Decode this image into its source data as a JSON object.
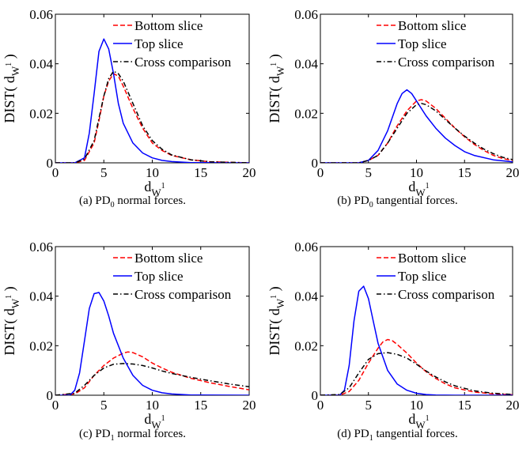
{
  "chart_data": [
    {
      "type": "line",
      "panel_id": "a",
      "caption_prefix": "(a) PD",
      "caption_sub": "0",
      "caption_suffix": " normal forces.",
      "xlabel": "d",
      "xlabel_sub": "W",
      "xlabel_sup": "1",
      "ylabel": "DIST( d",
      "ylabel_sub": "W",
      "ylabel_sup": "1",
      "ylabel_close": " )",
      "xlim": [
        0,
        20
      ],
      "ylim": [
        0,
        0.06
      ],
      "xticks": [
        "0",
        "5",
        "10",
        "15",
        "20"
      ],
      "yticks": [
        "0",
        "0.02",
        "0.04",
        "0.06"
      ],
      "grid": false,
      "legend_position": "top-right",
      "series": [
        {
          "name": "Bottom slice",
          "color": "#ff0000",
          "dash": "dashed",
          "x": [
            0,
            2,
            3,
            4,
            4.5,
            5,
            5.5,
            6,
            6.5,
            7,
            8,
            9,
            10,
            11,
            12,
            14,
            16,
            20
          ],
          "y": [
            0,
            0,
            0.001,
            0.008,
            0.017,
            0.027,
            0.033,
            0.036,
            0.035,
            0.031,
            0.022,
            0.014,
            0.008,
            0.005,
            0.003,
            0.0012,
            0.0004,
            0
          ]
        },
        {
          "name": "Top slice",
          "color": "#0000ff",
          "dash": "solid",
          "x": [
            0,
            2,
            3,
            3.5,
            4,
            4.5,
            5,
            5.5,
            6,
            6.5,
            7,
            8,
            9,
            10,
            11,
            12,
            14,
            20
          ],
          "y": [
            0,
            0,
            0.002,
            0.012,
            0.028,
            0.045,
            0.05,
            0.046,
            0.036,
            0.024,
            0.016,
            0.008,
            0.004,
            0.002,
            0.001,
            0.0005,
            0.0001,
            0
          ]
        },
        {
          "name": "Cross comparison",
          "color": "#000000",
          "dash": "dashdot",
          "x": [
            0,
            2,
            3,
            4,
            4.5,
            5,
            5.5,
            6,
            6.5,
            7,
            8,
            9,
            10,
            11,
            12,
            14,
            16,
            20
          ],
          "y": [
            0,
            0,
            0.0015,
            0.009,
            0.018,
            0.027,
            0.034,
            0.037,
            0.036,
            0.033,
            0.024,
            0.015,
            0.009,
            0.0055,
            0.0032,
            0.0012,
            0.0004,
            0
          ]
        }
      ]
    },
    {
      "type": "line",
      "panel_id": "b",
      "caption_prefix": "(b) PD",
      "caption_sub": "0",
      "caption_suffix": " tangential forces.",
      "xlabel": "d",
      "xlabel_sub": "W",
      "xlabel_sup": "1",
      "ylabel": "DIST( d",
      "ylabel_sub": "W",
      "ylabel_sup": "1",
      "ylabel_close": " )",
      "xlim": [
        0,
        20
      ],
      "ylim": [
        0,
        0.06
      ],
      "xticks": [
        "0",
        "5",
        "10",
        "15",
        "20"
      ],
      "yticks": [
        "0",
        "0.02",
        "0.04",
        "0.06"
      ],
      "grid": false,
      "legend_position": "top-right",
      "series": [
        {
          "name": "Bottom slice",
          "color": "#ff0000",
          "dash": "dashed",
          "x": [
            0,
            4,
            5,
            6,
            7,
            8,
            9,
            10,
            10.5,
            11,
            12,
            13,
            14,
            15,
            16,
            17,
            18,
            19,
            20
          ],
          "y": [
            0,
            0,
            0.001,
            0.003,
            0.008,
            0.015,
            0.021,
            0.025,
            0.0255,
            0.025,
            0.022,
            0.018,
            0.014,
            0.0105,
            0.0075,
            0.005,
            0.003,
            0.0017,
            0.001
          ]
        },
        {
          "name": "Top slice",
          "color": "#0000ff",
          "dash": "solid",
          "x": [
            0,
            4,
            5,
            6,
            7,
            8,
            8.5,
            9,
            9.5,
            10,
            11,
            12,
            13,
            14,
            15,
            16,
            18,
            20
          ],
          "y": [
            0,
            0,
            0.001,
            0.005,
            0.013,
            0.024,
            0.028,
            0.0295,
            0.028,
            0.025,
            0.019,
            0.014,
            0.01,
            0.007,
            0.0045,
            0.003,
            0.0012,
            0.0004
          ]
        },
        {
          "name": "Cross comparison",
          "color": "#000000",
          "dash": "dashdot",
          "x": [
            0,
            4,
            5,
            6,
            7,
            8,
            9,
            10,
            10.5,
            11,
            12,
            13,
            14,
            15,
            16,
            17,
            18,
            19,
            20
          ],
          "y": [
            0,
            0,
            0.001,
            0.003,
            0.008,
            0.014,
            0.02,
            0.0235,
            0.024,
            0.0235,
            0.021,
            0.0175,
            0.014,
            0.0108,
            0.008,
            0.0056,
            0.0037,
            0.0022,
            0.0013
          ]
        }
      ]
    },
    {
      "type": "line",
      "panel_id": "c",
      "caption_prefix": "(c) PD",
      "caption_sub": "1",
      "caption_suffix": " normal forces.",
      "xlabel": "d",
      "xlabel_sub": "W",
      "xlabel_sup": "1",
      "ylabel": "DIST( d",
      "ylabel_sub": "W",
      "ylabel_sup": "1",
      "ylabel_close": " )",
      "xlim": [
        0,
        20
      ],
      "ylim": [
        0,
        0.06
      ],
      "xticks": [
        "0",
        "5",
        "10",
        "15",
        "20"
      ],
      "yticks": [
        "0",
        "0.02",
        "0.04",
        "0.06"
      ],
      "grid": false,
      "legend_position": "top-right",
      "series": [
        {
          "name": "Bottom slice",
          "color": "#ff0000",
          "dash": "dashed",
          "x": [
            0,
            2,
            3,
            4,
            5,
            6,
            7,
            7.5,
            8,
            9,
            10,
            11,
            12,
            14,
            16,
            18,
            20
          ],
          "y": [
            0,
            0.0005,
            0.003,
            0.008,
            0.012,
            0.015,
            0.017,
            0.0175,
            0.0172,
            0.0155,
            0.013,
            0.011,
            0.0093,
            0.0068,
            0.005,
            0.0035,
            0.0022
          ]
        },
        {
          "name": "Top slice",
          "color": "#0000ff",
          "dash": "solid",
          "x": [
            0,
            1.5,
            2,
            2.5,
            3,
            3.5,
            4,
            4.5,
            5,
            5.5,
            6,
            7,
            8,
            9,
            10,
            11,
            12,
            14,
            20
          ],
          "y": [
            0,
            0,
            0.002,
            0.009,
            0.022,
            0.035,
            0.041,
            0.0415,
            0.038,
            0.032,
            0.025,
            0.015,
            0.008,
            0.004,
            0.002,
            0.001,
            0.0005,
            0.0001,
            0
          ]
        },
        {
          "name": "Cross comparison",
          "color": "#000000",
          "dash": "dashdot",
          "x": [
            0,
            2,
            3,
            4,
            5,
            6,
            7,
            8,
            9,
            10,
            11,
            12,
            14,
            16,
            18,
            20
          ],
          "y": [
            0,
            0.0008,
            0.004,
            0.008,
            0.011,
            0.0125,
            0.0128,
            0.0126,
            0.012,
            0.011,
            0.0098,
            0.0088,
            0.0072,
            0.0058,
            0.0045,
            0.0034
          ]
        }
      ]
    },
    {
      "type": "line",
      "panel_id": "d",
      "caption_prefix": "(d) PD",
      "caption_sub": "1",
      "caption_suffix": " tangential forces.",
      "xlabel": "d",
      "xlabel_sub": "W",
      "xlabel_sup": "1",
      "ylabel": "DIST( d",
      "ylabel_sub": "W",
      "ylabel_sup": "1",
      "ylabel_close": " )",
      "xlim": [
        0,
        20
      ],
      "ylim": [
        0,
        0.06
      ],
      "xticks": [
        "0",
        "5",
        "10",
        "15",
        "20"
      ],
      "yticks": [
        "0",
        "0.02",
        "0.04",
        "0.06"
      ],
      "grid": false,
      "legend_position": "top-right",
      "series": [
        {
          "name": "Bottom slice",
          "color": "#ff0000",
          "dash": "dashed",
          "x": [
            0,
            2,
            3,
            4,
            5,
            6,
            6.5,
            7,
            7.5,
            8,
            9,
            10,
            11,
            12,
            13,
            14,
            16,
            18,
            20
          ],
          "y": [
            0,
            0,
            0.0015,
            0.006,
            0.013,
            0.019,
            0.0215,
            0.0225,
            0.022,
            0.0205,
            0.017,
            0.013,
            0.0095,
            0.0068,
            0.0046,
            0.003,
            0.0013,
            0.0005,
            0.0002
          ]
        },
        {
          "name": "Top slice",
          "color": "#0000ff",
          "dash": "solid",
          "x": [
            0,
            2,
            2.5,
            3,
            3.5,
            4,
            4.5,
            5,
            5.5,
            6,
            7,
            8,
            9,
            10,
            11,
            12,
            14,
            20
          ],
          "y": [
            0,
            0,
            0.002,
            0.012,
            0.03,
            0.042,
            0.044,
            0.039,
            0.03,
            0.021,
            0.01,
            0.0045,
            0.002,
            0.0008,
            0.0003,
            0.0001,
            0,
            0
          ]
        },
        {
          "name": "Cross comparison",
          "color": "#000000",
          "dash": "dashdot",
          "x": [
            0,
            2,
            3,
            4,
            5,
            6,
            7,
            8,
            9,
            10,
            11,
            12,
            13,
            14,
            16,
            18,
            20
          ],
          "y": [
            0,
            0.0003,
            0.003,
            0.009,
            0.0145,
            0.0168,
            0.0172,
            0.0165,
            0.015,
            0.0125,
            0.0098,
            0.0074,
            0.0054,
            0.0038,
            0.0018,
            0.0008,
            0.0003
          ]
        }
      ]
    }
  ]
}
